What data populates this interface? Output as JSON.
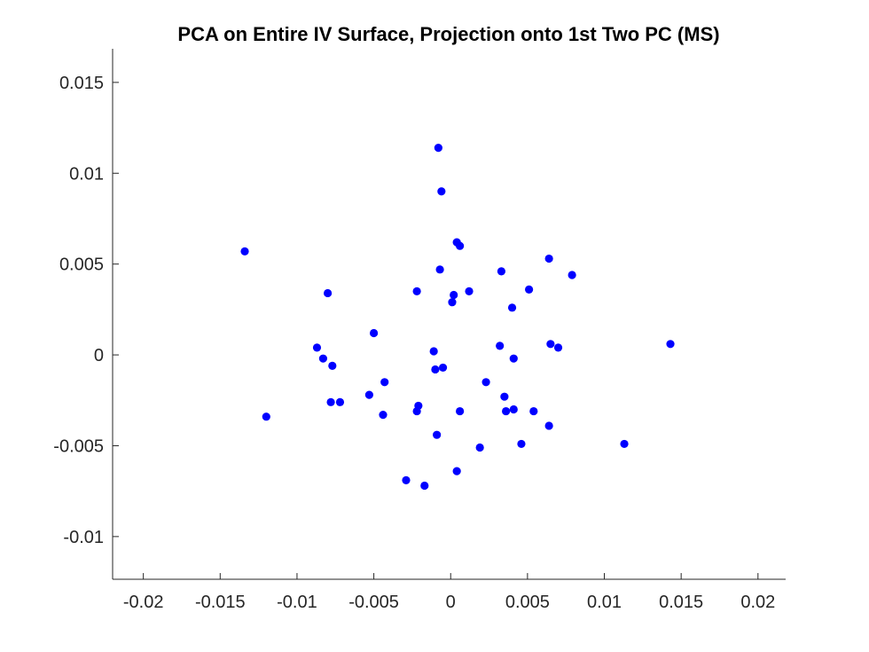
{
  "chart_data": {
    "type": "scatter",
    "title": "PCA on Entire IV Surface, Projection onto 1st Two PC (MS)",
    "xlabel": "",
    "ylabel": "",
    "xlim": [
      -0.022,
      0.0218
    ],
    "ylim": [
      -0.01235,
      0.01685
    ],
    "x_ticks": [
      -0.02,
      -0.015,
      -0.01,
      -0.005,
      0,
      0.005,
      0.01,
      0.015,
      0.02
    ],
    "x_tick_labels": [
      "-0.02",
      "-0.015",
      "-0.01",
      "-0.005",
      "0",
      "0.005",
      "0.01",
      "0.015",
      "0.02"
    ],
    "y_ticks": [
      -0.01,
      -0.005,
      0,
      0.005,
      0.01,
      0.015
    ],
    "y_tick_labels": [
      "-0.01",
      "-0.005",
      "0",
      "0.005",
      "0.01",
      "0.015"
    ],
    "grid": false,
    "marker_color": "#0000ff",
    "series": [
      {
        "x": [
          -0.0008,
          -0.0006,
          -0.0134,
          0.0004,
          0.0006,
          -0.0007,
          0.0064,
          0.0079,
          0.0033,
          0.0051,
          -0.0022,
          0.0012,
          0.0002,
          -0.008,
          0.0001,
          0.004,
          -0.005,
          -0.0087,
          -0.0083,
          -0.0077,
          -0.0011,
          -0.001,
          -0.0005,
          0.0032,
          0.0065,
          0.007,
          0.0143,
          0.0041,
          -0.0043,
          0.0023,
          -0.0053,
          0.0035,
          -0.0078,
          -0.0072,
          -0.0021,
          -0.0022,
          0.0036,
          0.0041,
          0.0054,
          0.0006,
          -0.0044,
          -0.012,
          0.0064,
          -0.0009,
          0.0046,
          0.0019,
          0.0113,
          0.0004,
          -0.0029,
          -0.0017
        ],
        "y": [
          0.0114,
          0.009,
          0.0057,
          0.0062,
          0.006,
          0.0047,
          0.0053,
          0.0044,
          0.0046,
          0.0036,
          0.0035,
          0.0035,
          0.0033,
          0.0034,
          0.0029,
          0.0026,
          0.0012,
          0.0004,
          -0.0002,
          -0.0006,
          0.0002,
          -0.0008,
          -0.0007,
          0.0005,
          0.0006,
          0.0004,
          0.0006,
          -0.0002,
          -0.0015,
          -0.0015,
          -0.0022,
          -0.0023,
          -0.0026,
          -0.0026,
          -0.0028,
          -0.0031,
          -0.0031,
          -0.003,
          -0.0031,
          -0.0031,
          -0.0033,
          -0.0034,
          -0.0039,
          -0.0044,
          -0.0049,
          -0.0051,
          -0.0049,
          -0.0064,
          -0.0069,
          -0.0072
        ]
      }
    ]
  }
}
